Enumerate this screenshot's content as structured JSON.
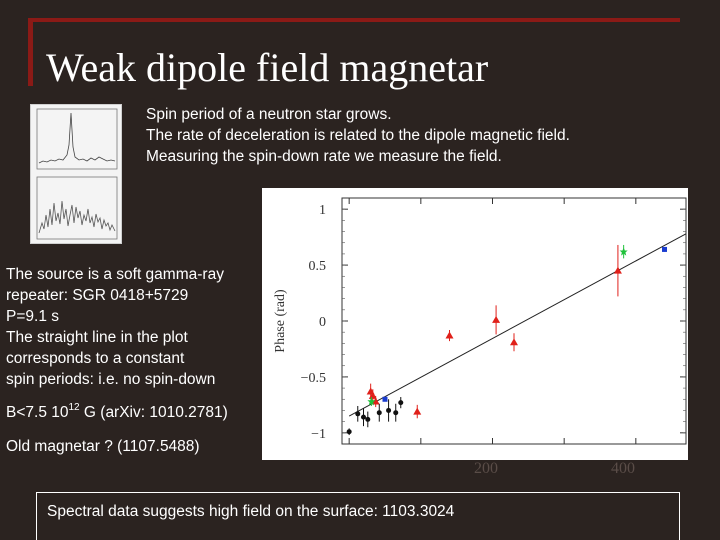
{
  "slide": {
    "title": "Weak dipole field magnetar",
    "intro_lines": [
      "Spin period of a neutron star grows.",
      "The rate of deceleration is related to the dipole magnetic field.",
      "Measuring the spin-down rate we measure the field."
    ],
    "left_lines": [
      "The source is a soft gamma-ray",
      "repeater: SGR 0418+5729",
      "P=9.1 s",
      "The straight line in the plot",
      "corresponds to a constant",
      "spin periods: i.e. no spin-down"
    ],
    "bfield": {
      "prefix": "B<7.5 10",
      "exponent": "12",
      "suffix": " G (arXiv: 1010.2781)"
    },
    "old_magnetar": "Old magnetar ? (1107.5488)",
    "spectral": "Spectral data suggests high field on the surface: 1103.3024"
  },
  "chart_data": {
    "type": "scatter",
    "ylabel": "Phase (rad)",
    "xlabel": "",
    "x_ticks": [
      "200",
      "400"
    ],
    "y_ticks": [
      "1",
      "0.5",
      "0",
      "−0.5",
      "−1"
    ],
    "ylim": [
      -1.1,
      1.1
    ],
    "xlim": [
      -10,
      470
    ],
    "grid": false,
    "colors": {
      "red": "#e0201a",
      "black": "#111111",
      "green": "#1fc23a",
      "blue": "#1a3cd0",
      "line": "#222222"
    },
    "trend_line": [
      [
        0,
        -0.85
      ],
      [
        470,
        0.78
      ]
    ],
    "series": [
      {
        "color": "red",
        "points": [
          {
            "x": 30,
            "y": -0.63,
            "err": 0.07
          },
          {
            "x": 33,
            "y": -0.67,
            "err": 0.06
          },
          {
            "x": 37,
            "y": -0.72,
            "err": 0.05
          },
          {
            "x": 95,
            "y": -0.81,
            "err": 0.06
          },
          {
            "x": 140,
            "y": -0.13,
            "err": 0.05
          },
          {
            "x": 205,
            "y": 0.01,
            "err": 0.13
          },
          {
            "x": 230,
            "y": -0.19,
            "err": 0.08
          },
          {
            "x": 375,
            "y": 0.45,
            "err": 0.23
          }
        ]
      },
      {
        "color": "black",
        "points": [
          {
            "x": 0,
            "y": -0.99,
            "err": 0.03
          },
          {
            "x": 12,
            "y": -0.83,
            "err": 0.07
          },
          {
            "x": 20,
            "y": -0.86,
            "err": 0.08
          },
          {
            "x": 26,
            "y": -0.88,
            "err": 0.07
          },
          {
            "x": 42,
            "y": -0.82,
            "err": 0.08
          },
          {
            "x": 55,
            "y": -0.8,
            "err": 0.1
          },
          {
            "x": 65,
            "y": -0.82,
            "err": 0.08
          },
          {
            "x": 72,
            "y": -0.73,
            "err": 0.05
          }
        ]
      },
      {
        "color": "green",
        "points": [
          {
            "x": 31,
            "y": -0.72,
            "err": 0.04
          },
          {
            "x": 383,
            "y": 0.62,
            "err": 0.06
          }
        ]
      },
      {
        "color": "blue",
        "points": [
          {
            "x": 50,
            "y": -0.7,
            "err": 0.02
          },
          {
            "x": 440,
            "y": 0.64,
            "err": 0.02
          }
        ]
      }
    ]
  }
}
